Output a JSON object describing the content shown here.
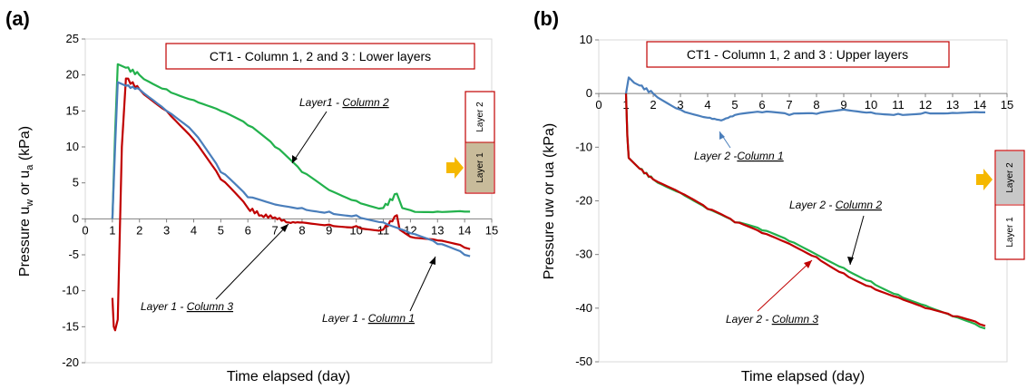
{
  "figure": {
    "panel_a_letter": "(a)",
    "panel_b_letter": "(b)"
  },
  "chart_data": [
    {
      "type": "line",
      "title": "CT1 - Column 1, 2 and 3 : Lower layers",
      "xlabel": "Time elapsed (day)",
      "ylabel": "Pressure uw or ua (kPa)",
      "ylabel_parts": [
        "Pressure u",
        "w",
        " or u",
        "a",
        " (kPa)"
      ],
      "xlim": [
        0,
        15
      ],
      "ylim": [
        -20,
        25
      ],
      "xticks": [
        0,
        1,
        2,
        3,
        4,
        5,
        6,
        7,
        8,
        9,
        10,
        11,
        12,
        13,
        14,
        15
      ],
      "yticks": [
        -20,
        -15,
        -10,
        -5,
        0,
        5,
        10,
        15,
        20,
        25
      ],
      "grid": false,
      "series": [
        {
          "name": "Layer1 - Column 2",
          "color": "#22b14c",
          "x": [
            1.0,
            1.1,
            1.2,
            1.5,
            2,
            3,
            4,
            5,
            6,
            7,
            8,
            9,
            10,
            11,
            11.5,
            11.7,
            12,
            13,
            14,
            14.2
          ],
          "y": [
            0,
            12,
            21.5,
            21,
            20,
            18,
            16.5,
            15,
            13,
            10,
            6.5,
            4,
            2.5,
            1.5,
            3.5,
            1.5,
            1.2,
            1.0,
            1.0,
            1.0
          ]
        },
        {
          "name": "Layer 1 - Column 3",
          "color": "#c00000",
          "x": [
            1.0,
            1.05,
            1.1,
            1.2,
            1.3,
            1.35,
            1.5,
            2,
            3,
            4,
            5,
            6,
            6.5,
            7,
            7.5,
            8,
            9,
            10,
            11,
            11.5,
            11.6,
            11.8,
            12,
            13,
            14,
            14.2
          ],
          "y": [
            -11,
            -15,
            -15.5,
            -14,
            2,
            10,
            19.5,
            18,
            15,
            11,
            5.5,
            1.5,
            0.5,
            0.2,
            -0.5,
            -0.5,
            -0.8,
            -1,
            -1.5,
            0.5,
            -1.5,
            -2,
            -2.5,
            -3,
            -4,
            -4.2
          ]
        },
        {
          "name": "Layer 1 - Column 1",
          "color": "#4a7ebb",
          "x": [
            1.0,
            1.1,
            1.2,
            1.5,
            2,
            3,
            4,
            5,
            6,
            7,
            8,
            9,
            10,
            11,
            12,
            13,
            14,
            14.2
          ],
          "y": [
            0,
            10,
            19,
            18.5,
            18,
            15,
            12,
            6.5,
            3,
            2,
            1.5,
            1,
            0.5,
            -0.5,
            -2,
            -3.5,
            -5,
            -5.2
          ]
        }
      ],
      "annotations": [
        {
          "prefix": "Layer1 - ",
          "column": "Column 2"
        },
        {
          "prefix": "Layer 1 - ",
          "column": "Column 3"
        },
        {
          "prefix": "Layer 1 - ",
          "column": "Column 1"
        }
      ],
      "layer_box": {
        "upper_label": "Layer 2",
        "lower_label": "Layer 1",
        "highlighted": "Layer 1",
        "highlight_color": "#c8bb9a",
        "arrow_color": "#f5b800"
      }
    },
    {
      "type": "line",
      "title": "CT1 - Column 1, 2 and 3 : Upper layers",
      "xlabel": "Time elapsed (day)",
      "ylabel": "Pressure uw or ua (kPa)",
      "ylabel_parts": [
        "Pressure uw or ua (kPa)"
      ],
      "xlim": [
        0,
        15
      ],
      "ylim": [
        -50,
        10
      ],
      "xticks": [
        0,
        1,
        2,
        3,
        4,
        5,
        6,
        7,
        8,
        9,
        10,
        11,
        12,
        13,
        14,
        15
      ],
      "yticks": [
        -50,
        -40,
        -30,
        -20,
        -10,
        0,
        10
      ],
      "grid": false,
      "series": [
        {
          "name": "Layer 2 - Column 1",
          "color": "#4a7ebb",
          "x": [
            1.0,
            1.1,
            1.3,
            1.5,
            2,
            3,
            4,
            4.5,
            5,
            6,
            7,
            8,
            9,
            10,
            11,
            12,
            13,
            14,
            14.2
          ],
          "y": [
            0,
            3,
            2,
            1.5,
            0,
            -3,
            -4.5,
            -5,
            -4,
            -3.5,
            -4,
            -3.8,
            -3,
            -3.5,
            -3.8,
            -3.5,
            -3.6,
            -3.5,
            -3.5
          ]
        },
        {
          "name": "Layer 2 - Column 2",
          "color": "#22b14c",
          "x": [
            1.0,
            1.05,
            1.1,
            1.5,
            2,
            3,
            4,
            5,
            6,
            7,
            8,
            9,
            10,
            11,
            12,
            13,
            14,
            14.2
          ],
          "y": [
            0,
            -8,
            -12,
            -14,
            -16,
            -18.5,
            -21.5,
            -24,
            -25.5,
            -27.5,
            -30,
            -32.5,
            -35,
            -37.5,
            -39.5,
            -41.5,
            -43.5,
            -43.8
          ]
        },
        {
          "name": "Layer 2 - Column 3",
          "color": "#c00000",
          "x": [
            1.0,
            1.05,
            1.1,
            1.5,
            2,
            3,
            4,
            5,
            6,
            7,
            8,
            9,
            10,
            11,
            12,
            13,
            14,
            14.2
          ],
          "y": [
            0,
            -8,
            -12,
            -14,
            -16,
            -18.5,
            -21.5,
            -24,
            -26,
            -28,
            -30.5,
            -33.5,
            -36,
            -38,
            -40,
            -41.5,
            -43,
            -43.3
          ]
        }
      ],
      "annotations": [
        {
          "prefix": "Layer 2 -",
          "column": "Column 1"
        },
        {
          "prefix": "Layer 2 - ",
          "column": "Column 2"
        },
        {
          "prefix": "Layer 2 - ",
          "column": "Column 3"
        }
      ],
      "layer_box": {
        "upper_label": "Layer 2",
        "lower_label": "Layer 1",
        "highlighted": "Layer 2",
        "highlight_color": "#c8c8c8",
        "arrow_color": "#f5b800"
      }
    }
  ]
}
